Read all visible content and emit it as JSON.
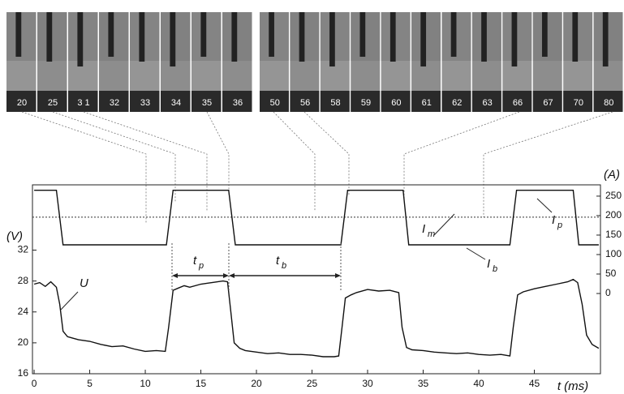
{
  "frames": [
    [
      "20",
      "25",
      "3 1",
      "32",
      "33",
      "34",
      "35",
      "36"
    ],
    [
      "50",
      "56",
      "58",
      "59",
      "60",
      "61",
      "62",
      "63",
      "66",
      "67",
      "70",
      "80"
    ]
  ],
  "chart_data": {
    "type": "line",
    "x_label": "t (ms)",
    "y_label": "(V)",
    "y2_label": "(A)",
    "xlim": [
      -0.15,
      50.95
    ],
    "xticks": [
      0,
      5,
      10,
      15,
      20,
      25,
      30,
      35,
      40,
      45
    ],
    "ylim": [
      16,
      40.45
    ],
    "yticks": [
      16,
      20,
      24,
      28,
      32
    ],
    "y2lim": [
      -206,
      279
    ],
    "y2ticks": [
      0,
      50,
      100,
      150,
      200,
      250
    ],
    "series": [
      {
        "color": "#111111",
        "axis": "y2",
        "x": [
          0,
          2.0,
          2.6,
          11.9,
          12.5,
          17.5,
          18.1,
          27.6,
          28.2,
          33.2,
          33.7,
          42.8,
          43.4,
          48.5,
          49.0,
          50.8
        ],
        "values": [
          265,
          265,
          125,
          125,
          265,
          265,
          125,
          125,
          265,
          265,
          125,
          125,
          265,
          265,
          125,
          125
        ]
      },
      {
        "color": "#111111",
        "axis": "y",
        "x": [
          0,
          0.5,
          1,
          1.5,
          2,
          2.3,
          2.6,
          3,
          3.5,
          4,
          5,
          6,
          7,
          8,
          9,
          10,
          11,
          11.8,
          12.1,
          12.5,
          13,
          13.5,
          14,
          15,
          16,
          17,
          17.4,
          17.7,
          18,
          18.5,
          19,
          20,
          21,
          22,
          23,
          24,
          25,
          26,
          27,
          27.4,
          27.7,
          28,
          28.5,
          29,
          30,
          31,
          32,
          32.8,
          33.1,
          33.5,
          34,
          35,
          36,
          37,
          38,
          39,
          40,
          41,
          42,
          42.8,
          43.1,
          43.5,
          44,
          45,
          46,
          47,
          48,
          48.5,
          48.9,
          49.3,
          49.7,
          50.2,
          50.8
        ],
        "values": [
          27.6,
          27.8,
          27.3,
          27.9,
          27.2,
          25,
          21.5,
          20.8,
          20.6,
          20.4,
          20.2,
          19.8,
          19.5,
          19.6,
          19.2,
          18.9,
          19.0,
          18.9,
          22,
          26.8,
          27.1,
          27.4,
          27.2,
          27.6,
          27.8,
          28,
          27.9,
          24,
          20,
          19.3,
          19.0,
          18.8,
          18.6,
          18.7,
          18.5,
          18.5,
          18.4,
          18.2,
          18.2,
          18.3,
          22,
          25.8,
          26.2,
          26.5,
          26.9,
          26.7,
          26.8,
          26.5,
          22,
          19.4,
          19.1,
          19.0,
          18.8,
          18.7,
          18.6,
          18.7,
          18.5,
          18.4,
          18.5,
          18.3,
          22,
          26.2,
          26.6,
          27.0,
          27.3,
          27.6,
          27.9,
          28.2,
          27.8,
          25,
          21,
          19.8,
          19.3
        ]
      }
    ],
    "mean_line": 196,
    "annotations": {
      "U": "U",
      "Im": {
        "main": "I",
        "sub": "m"
      },
      "Ip": {
        "main": "I",
        "sub": "p"
      },
      "Ib": {
        "main": "I",
        "sub": "b"
      },
      "tp": {
        "main": "t",
        "sub": "p"
      },
      "tb": {
        "main": "t",
        "sub": "b"
      }
    }
  }
}
